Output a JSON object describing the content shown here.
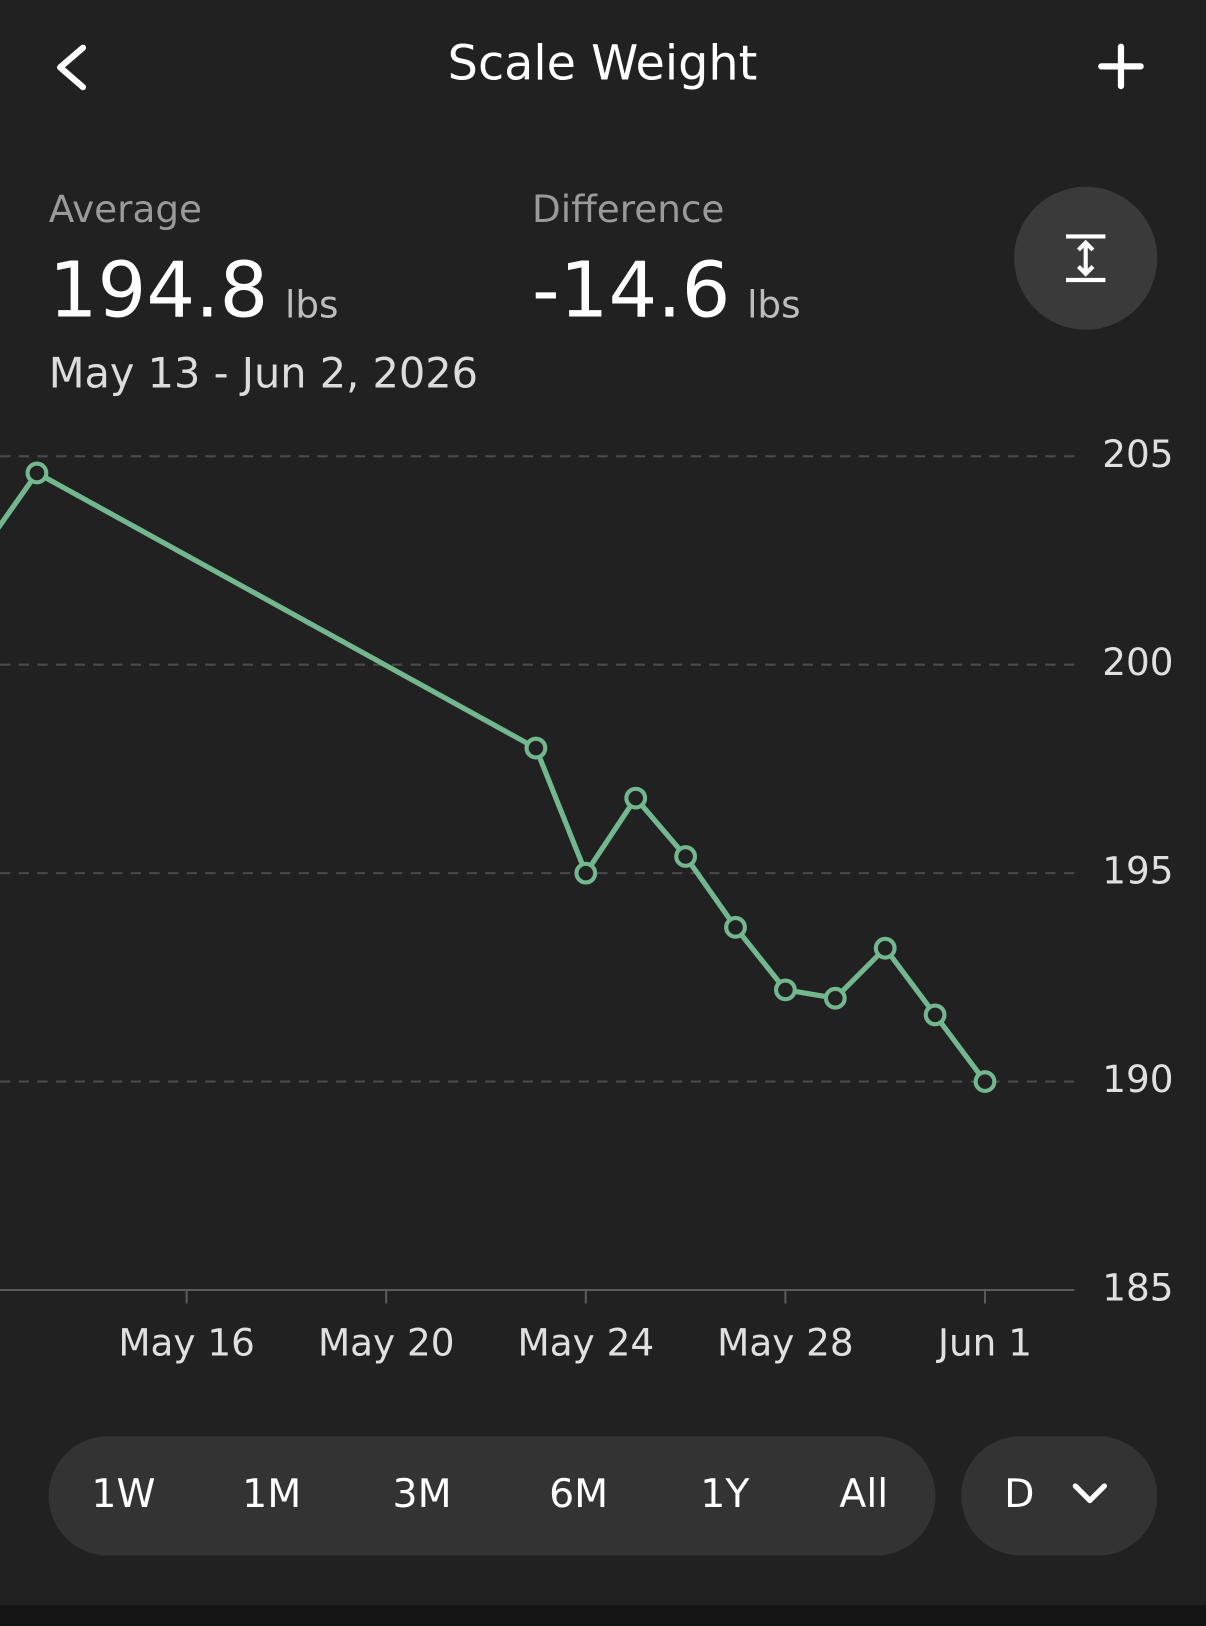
{
  "header": {
    "title": "Scale Weight"
  },
  "stats": {
    "average": {
      "label": "Average",
      "value": "194.8",
      "unit": "lbs"
    },
    "difference": {
      "label": "Difference",
      "value": "-14.6",
      "unit": "lbs"
    },
    "date_range": "May 13 - Jun 2, 2026"
  },
  "chart_data": {
    "type": "line",
    "x": [
      "May 12",
      "May 13",
      "May 23",
      "May 24",
      "May 25",
      "May 26",
      "May 27",
      "May 28",
      "May 29",
      "May 30",
      "May 31",
      "Jun 1"
    ],
    "values": [
      202.9,
      204.6,
      198.0,
      195.0,
      196.8,
      195.4,
      193.7,
      192.2,
      192.0,
      193.2,
      191.6,
      190.0
    ],
    "color": "#73b78f",
    "xlim": [
      "May 12",
      "Jun 2"
    ],
    "xticks": [
      "May 16",
      "May 20",
      "May 24",
      "May 28",
      "Jun 1"
    ],
    "ylim": [
      185,
      205
    ],
    "yticks": [
      185,
      190,
      195,
      200,
      205
    ],
    "grid": true
  },
  "range_buttons": [
    "1W",
    "1M",
    "3M",
    "6M",
    "1Y",
    "All"
  ],
  "granularity": "D"
}
